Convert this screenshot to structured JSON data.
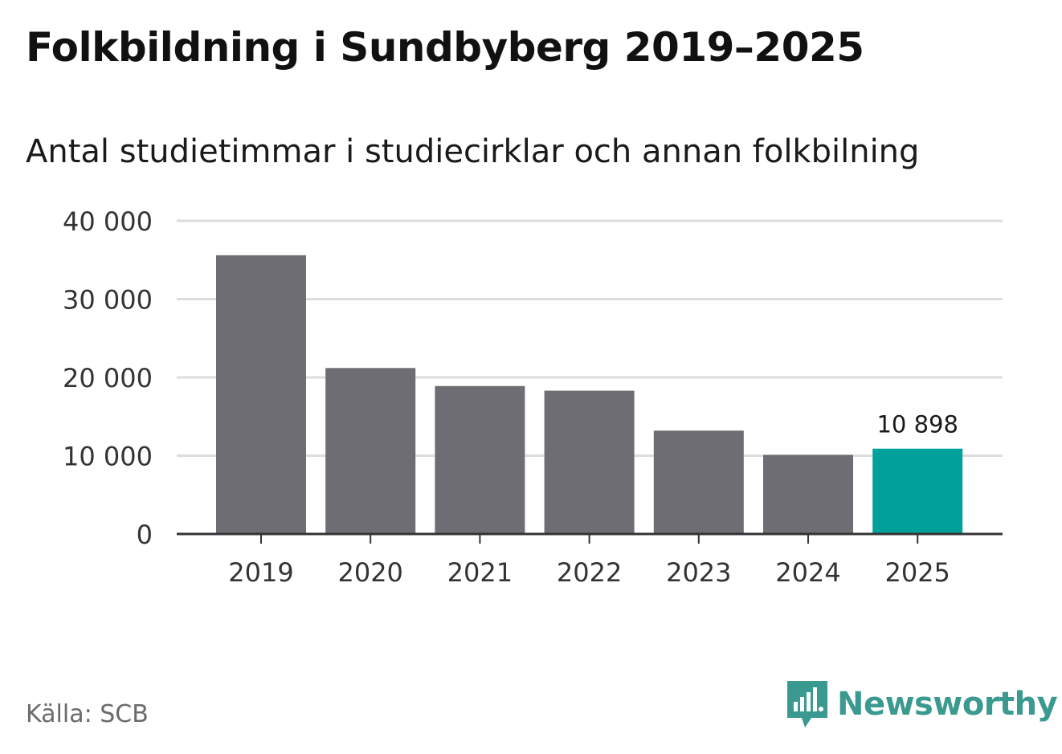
{
  "title": "Folkbildning i Sundbyberg 2019–2025",
  "subtitle": "Antal studietimmar i studiecirklar och annan folkbilning",
  "source": "Källa: SCB",
  "brand": {
    "name": "Newsworthy",
    "icon": "newsworthy-logo-icon",
    "color": "#3a9a90"
  },
  "colors": {
    "bar": "#6e6d73",
    "highlight": "#00a19a",
    "grid": "#dddddd",
    "axis": "#333333"
  },
  "chart_data": {
    "type": "bar",
    "categories": [
      "2019",
      "2020",
      "2021",
      "2022",
      "2023",
      "2024",
      "2025"
    ],
    "values": [
      35600,
      21200,
      18900,
      18300,
      13200,
      10100,
      10898
    ],
    "highlight_index": 6,
    "data_labels": [
      {
        "index": 6,
        "text": "10 898"
      }
    ],
    "ylim": [
      0,
      40000
    ],
    "yticks": [
      0,
      10000,
      20000,
      30000,
      40000
    ],
    "ytick_labels": [
      "0",
      "10 000",
      "20 000",
      "30 000",
      "40 000"
    ],
    "xlabel": "",
    "ylabel": "",
    "grid": true
  }
}
